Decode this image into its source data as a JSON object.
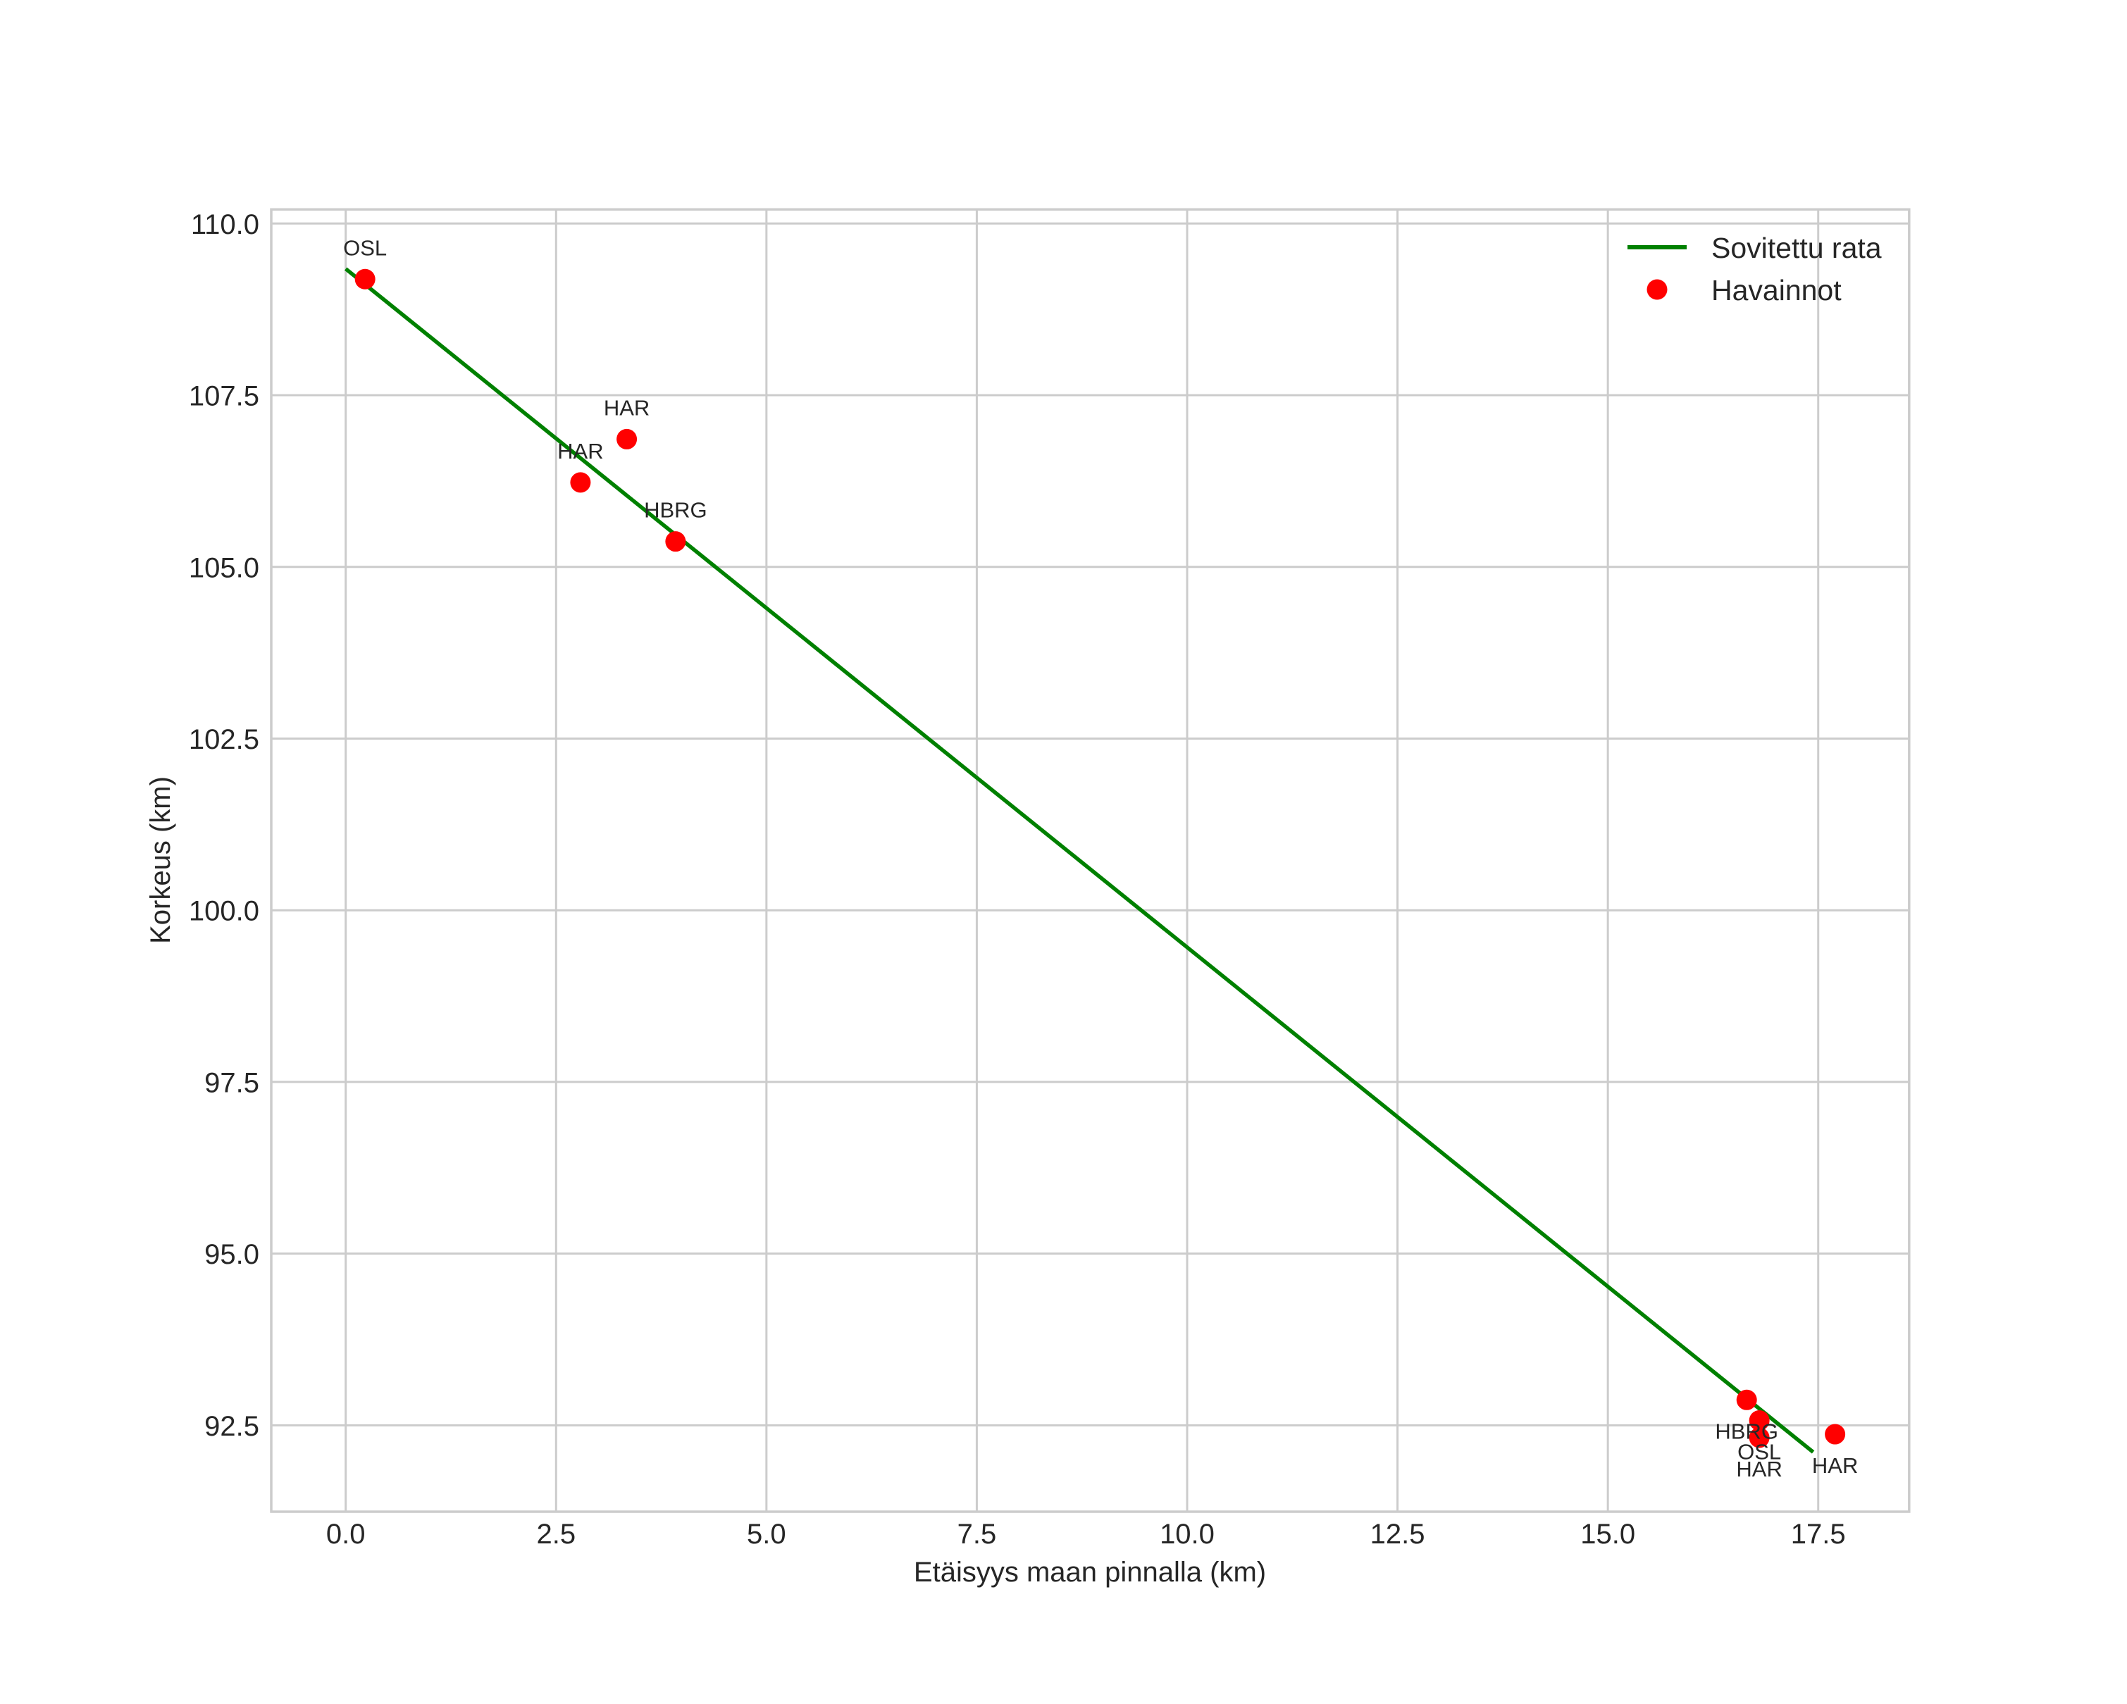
{
  "chart_data": {
    "type": "line+scatter",
    "title": "",
    "xlabel": "Etäisyys maan pinnalla (km)",
    "ylabel": "Korkeus (km)",
    "xlim": [
      -0.87,
      18.6
    ],
    "ylim": [
      91.24,
      110.2
    ],
    "grid": true,
    "legend_position": "upper right",
    "x_ticks": [
      0.0,
      2.5,
      5.0,
      7.5,
      10.0,
      12.5,
      15.0,
      17.5
    ],
    "x_tick_labels": [
      "0.0",
      "2.5",
      "5.0",
      "7.5",
      "10.0",
      "12.5",
      "15.0",
      "17.5"
    ],
    "y_ticks": [
      92.5,
      95.0,
      97.5,
      100.0,
      102.5,
      105.0,
      107.5,
      110.0
    ],
    "y_tick_labels": [
      "92.5",
      "95.0",
      "97.5",
      "100.0",
      "102.5",
      "105.0",
      "107.5",
      "110.0"
    ],
    "series": [
      {
        "name": "Sovitettu rata",
        "type": "line",
        "color": "#008000",
        "x": [
          0.0,
          17.44
        ],
        "y": [
          109.34,
          92.11
        ]
      },
      {
        "name": "Havainnot",
        "type": "scatter",
        "color": "#ff0000",
        "points": [
          {
            "x": 0.23,
            "y": 109.19,
            "label": "OSL",
            "label_pos": "above"
          },
          {
            "x": 3.34,
            "y": 106.86,
            "label": "HAR",
            "label_pos": "above"
          },
          {
            "x": 2.79,
            "y": 106.23,
            "label": "HAR",
            "label_pos": "above"
          },
          {
            "x": 3.92,
            "y": 105.37,
            "label": "HBRG",
            "label_pos": "above"
          },
          {
            "x": 16.65,
            "y": 92.87,
            "label": "HBRG",
            "label_pos": "below"
          },
          {
            "x": 16.8,
            "y": 92.57,
            "label": "OSL",
            "label_pos": "below"
          },
          {
            "x": 16.8,
            "y": 92.32,
            "label": "HAR",
            "label_pos": "below"
          },
          {
            "x": 17.7,
            "y": 92.37,
            "label": "HAR",
            "label_pos": "below"
          }
        ]
      }
    ],
    "legend": [
      {
        "label": "Sovitettu rata",
        "marker": "line",
        "color": "#008000"
      },
      {
        "label": "Havainnot",
        "marker": "circle",
        "color": "#ff0000"
      }
    ]
  },
  "colors": {
    "fit_line": "#008000",
    "observations": "#ff0000",
    "grid": "#cccccc",
    "text": "#262626",
    "background": "#ffffff"
  }
}
